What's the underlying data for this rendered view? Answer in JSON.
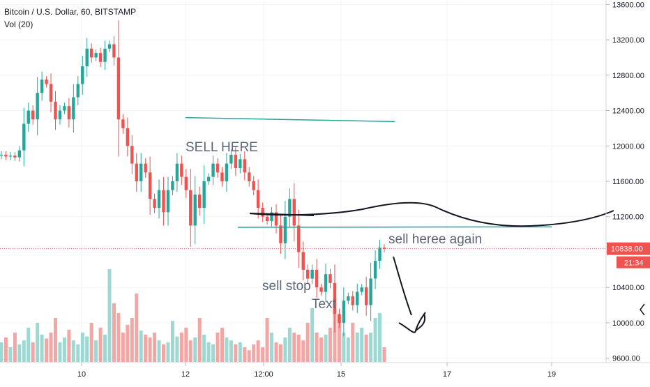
{
  "header": {
    "symbol": "Bitcoin / U.S. Dollar, 60, BITSTAMP",
    "volume_label": "Vol (20)"
  },
  "price_axis": {
    "ticks": [
      "13600.00",
      "13200.00",
      "12800.00",
      "12400.00",
      "12000.00",
      "11600.00",
      "11200.00",
      "10800.00",
      "10400.00",
      "10000.00",
      "9600.00"
    ],
    "last_price": "10838.00",
    "countdown": "21:34"
  },
  "time_axis": {
    "ticks": [
      "10",
      "12",
      "12:00",
      "15",
      "17",
      "19"
    ]
  },
  "annotations": {
    "sell_here": "SELL HERE",
    "sell_again": "sell heree again",
    "sell_stop": "sell stop",
    "text_note": "Text"
  },
  "colors": {
    "up": "#26a69a",
    "down": "#ef5350",
    "vol_up": "#9ed8d2",
    "vol_down": "#f3a6a4",
    "trendline": "#26a69a",
    "drawing": "#131722",
    "last_price_bg": "#ef5350",
    "grid": "#f0f3fa"
  },
  "chart_data": {
    "type": "candlestick",
    "symbol": "Bitcoin / U.S. Dollar",
    "interval": "60",
    "exchange": "BITSTAMP",
    "ylim": [
      9550,
      13650
    ],
    "price_ticks": [
      13600,
      13200,
      12800,
      12400,
      12000,
      11600,
      11200,
      10800,
      10400,
      10000,
      9600
    ],
    "last_price": 10838,
    "closes": [
      11900,
      11880,
      11890,
      11870,
      11950,
      12250,
      12400,
      12300,
      12600,
      12750,
      12700,
      12500,
      12300,
      12400,
      12450,
      12300,
      12550,
      12700,
      12900,
      13100,
      13000,
      13050,
      12950,
      13100,
      13150,
      13000,
      12300,
      12200,
      12000,
      11800,
      11600,
      11800,
      11700,
      11400,
      11300,
      11500,
      11250,
      11500,
      11600,
      11800,
      11650,
      11500,
      11100,
      11450,
      11300,
      11600,
      11650,
      11800,
      11700,
      11600,
      11800,
      11900,
      11750,
      11850,
      11700,
      11600,
      11500,
      11300,
      11200,
      11150,
      11250,
      11100,
      10900,
      11200,
      11400,
      11100,
      10800,
      10600,
      10500,
      10600,
      10400,
      10350,
      10550,
      10450,
      10100,
      10000,
      10250,
      10300,
      10200,
      10350,
      10400,
      10200,
      10500,
      10700,
      10850,
      10838
    ],
    "volume_scale": "relative",
    "volumes": [
      0.2,
      0.25,
      0.15,
      0.3,
      0.18,
      0.22,
      0.35,
      0.2,
      0.4,
      0.28,
      0.24,
      0.3,
      0.45,
      0.2,
      0.25,
      0.33,
      0.22,
      0.18,
      0.3,
      0.26,
      0.4,
      0.22,
      0.35,
      0.28,
      0.95,
      0.6,
      0.5,
      0.3,
      0.38,
      0.45,
      0.7,
      0.32,
      0.28,
      0.25,
      0.3,
      0.22,
      0.18,
      0.2,
      0.42,
      0.26,
      0.3,
      0.35,
      0.22,
      0.25,
      0.45,
      0.28,
      0.2,
      0.18,
      0.3,
      0.35,
      0.25,
      0.22,
      0.18,
      0.2,
      0.15,
      0.12,
      0.18,
      0.22,
      0.15,
      0.45,
      0.3,
      0.2,
      0.18,
      0.25,
      0.35,
      0.3,
      0.28,
      0.22,
      0.4,
      0.55,
      0.3,
      0.25,
      0.28,
      0.35,
      0.65,
      0.48,
      0.3,
      0.25,
      0.4,
      0.3,
      0.35,
      0.28,
      0.3,
      0.45,
      0.5,
      0.15
    ],
    "horizontal_levels": [
      {
        "name": "trendline-upper",
        "from_price": 12320,
        "to_price": 12275
      },
      {
        "name": "trendline-lower",
        "from_price": 11080,
        "to_price": 11085
      }
    ]
  }
}
